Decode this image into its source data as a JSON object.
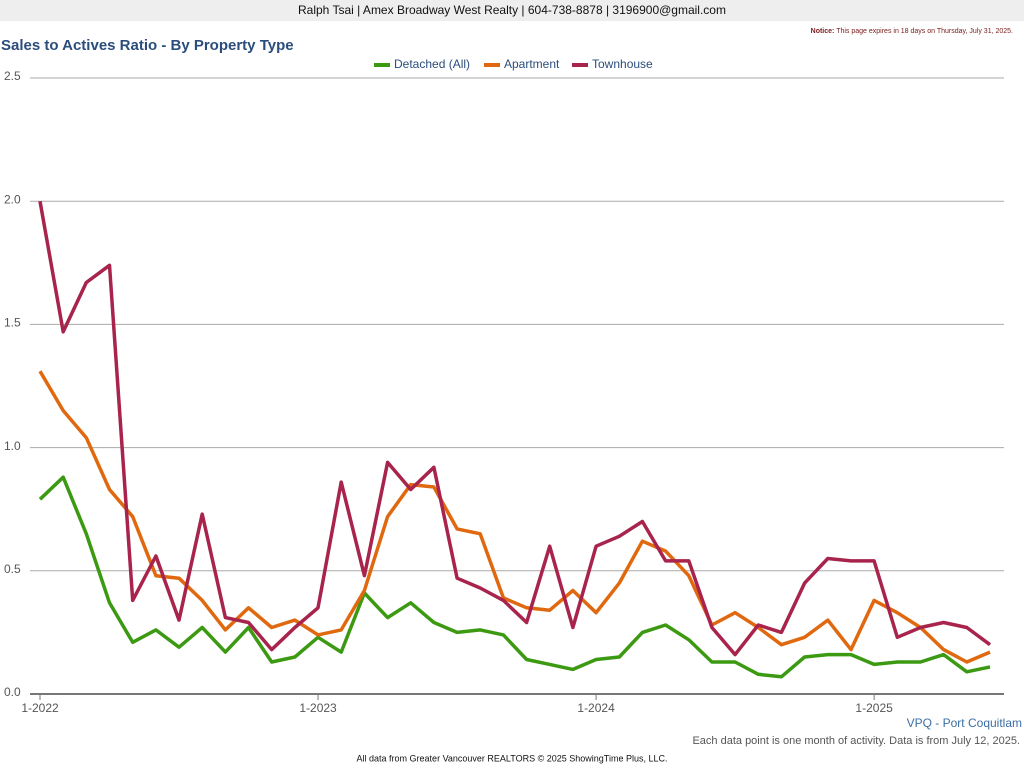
{
  "header": "Ralph Tsai | Amex Broadway West Realty | 604-738-8878 | 3196900@gmail.com",
  "notice": {
    "label": "Notice:",
    "text": "This page expires in 18 days on Thursday, July 31, 2025."
  },
  "region": "VPQ - Port Coquitlam",
  "note": "Each data point is one month of activity. Data is from July 12, 2025.",
  "footer": "All data from Greater Vancouver REALTORS © 2025 ShowingTime Plus, LLC.",
  "chart_data": {
    "type": "line",
    "title": "Sales to Actives Ratio - By Property Type",
    "categories": [
      "1-2022",
      null,
      null,
      null,
      null,
      null,
      null,
      null,
      null,
      null,
      null,
      null,
      "1-2023",
      null,
      null,
      null,
      null,
      null,
      null,
      null,
      null,
      null,
      null,
      null,
      "1-2024",
      null,
      null,
      null,
      null,
      null,
      null,
      null,
      null,
      null,
      null,
      null,
      "1-2025",
      null,
      null,
      null,
      null,
      null
    ],
    "ylim": [
      0,
      2.5
    ],
    "yticks": [
      {
        "value": 0,
        "label": "0.0"
      },
      0.5,
      {
        "value": 1,
        "label": "1.0"
      },
      1.5,
      {
        "value": 2,
        "label": "2.0"
      },
      2.5
    ],
    "grid": true,
    "legend": "top",
    "series": [
      {
        "name": "Detached (All)",
        "color": "#3c9a12",
        "values": [
          0.79,
          0.88,
          0.65,
          0.37,
          0.21,
          0.26,
          0.19,
          0.27,
          0.17,
          0.27,
          0.13,
          0.15,
          0.23,
          0.17,
          0.41,
          0.31,
          0.37,
          0.29,
          0.25,
          0.26,
          0.24,
          0.14,
          0.12,
          0.1,
          0.14,
          0.15,
          0.25,
          0.28,
          0.22,
          0.13,
          0.13,
          0.08,
          0.07,
          0.15,
          0.16,
          0.16,
          0.12,
          0.13,
          0.13,
          0.16,
          0.09,
          0.11
        ]
      },
      {
        "name": "Apartment",
        "color": "#e0690f",
        "values": [
          1.31,
          1.15,
          1.04,
          0.83,
          0.72,
          0.48,
          0.47,
          0.38,
          0.26,
          0.35,
          0.27,
          0.3,
          0.24,
          0.26,
          0.42,
          0.72,
          0.85,
          0.84,
          0.67,
          0.65,
          0.39,
          0.35,
          0.34,
          0.42,
          0.33,
          0.45,
          0.62,
          0.58,
          0.48,
          0.28,
          0.33,
          0.27,
          0.2,
          0.23,
          0.3,
          0.18,
          0.38,
          0.33,
          0.27,
          0.18,
          0.13,
          0.17
        ]
      },
      {
        "name": "Townhouse",
        "color": "#a8244c",
        "values": [
          2.0,
          1.47,
          1.67,
          1.74,
          0.38,
          0.56,
          0.3,
          0.73,
          0.31,
          0.29,
          0.18,
          0.27,
          0.35,
          0.86,
          0.48,
          0.94,
          0.83,
          0.92,
          0.47,
          0.43,
          0.38,
          0.29,
          0.6,
          0.27,
          0.6,
          0.64,
          0.7,
          0.54,
          0.54,
          0.27,
          0.16,
          0.28,
          0.25,
          0.45,
          0.55,
          0.54,
          0.54,
          0.23,
          0.27,
          0.29,
          0.27,
          0.2
        ]
      }
    ]
  }
}
